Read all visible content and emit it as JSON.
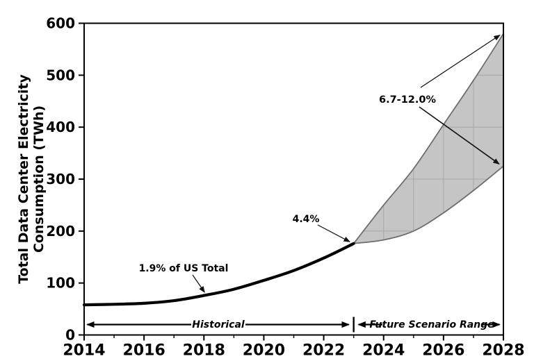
{
  "colors": {
    "line": "#000000",
    "band_fill": "#c5c5c5",
    "band_edge": "#6e6e6e",
    "band_grid": "#a9a9a9",
    "axis": "#000000",
    "background": "#ffffff"
  },
  "chart_data": {
    "type": "line",
    "title": "",
    "xlabel": "",
    "ylabel": "Total Data Center Electricity Consumption (TWh)",
    "ylabel_line1": "Total Data Center Electricity",
    "ylabel_line2": "Consumption (TWh)",
    "xlim": [
      2014,
      2028
    ],
    "ylim": [
      0,
      600
    ],
    "x_major_ticks": [
      2014,
      2016,
      2018,
      2020,
      2022,
      2024,
      2026,
      2028
    ],
    "x_minor_ticks": [
      2015,
      2017,
      2019,
      2021,
      2023,
      2025,
      2027
    ],
    "y_ticks": [
      0,
      100,
      200,
      300,
      400,
      500,
      600
    ],
    "grid": "faint gray gridlines visible only through the shaded scenario band",
    "legend": "none",
    "series": [
      {
        "name": "Historical",
        "type": "line",
        "color": "#000000",
        "x": [
          2014,
          2015,
          2016,
          2017,
          2018,
          2019,
          2020,
          2021,
          2022,
          2023
        ],
        "values": [
          58,
          59,
          61,
          66,
          76,
          88,
          105,
          124,
          148,
          176
        ]
      },
      {
        "name": "Future Scenario Range - upper bound",
        "type": "area-upper",
        "color": "#c5c5c5",
        "x": [
          2023,
          2024,
          2025,
          2026,
          2027,
          2028
        ],
        "values": [
          176,
          250,
          320,
          405,
          490,
          580
        ]
      },
      {
        "name": "Future Scenario Range - lower bound",
        "type": "area-lower",
        "color": "#c5c5c5",
        "x": [
          2023,
          2024,
          2025,
          2026,
          2027,
          2028
        ],
        "values": [
          176,
          183,
          200,
          235,
          278,
          325
        ]
      }
    ],
    "annotations": {
      "hist_share": {
        "text": "1.9% of US Total",
        "target_year": 2018,
        "target_value": 76
      },
      "current_share": {
        "text": "4.4%",
        "target_year": 2023,
        "target_value": 176
      },
      "future_share": {
        "text": "6.7-12.0%",
        "target_year": 2028,
        "upper_value": 580,
        "lower_value": 325
      },
      "historical_span": {
        "text": "Historical",
        "from_year": 2014,
        "to_year": 2023
      },
      "future_span": {
        "text": "Future Scenario Range",
        "from_year": 2023,
        "to_year": 2028
      }
    }
  }
}
